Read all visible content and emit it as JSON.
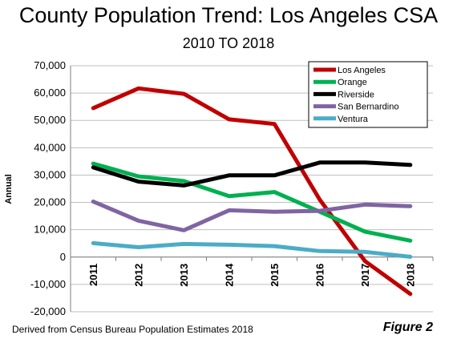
{
  "chart_data": {
    "type": "line",
    "title": "County Population Trend: Los Angeles CSA",
    "subtitle": "2010 TO 2018",
    "ylabel": "Annual",
    "xlabel": "",
    "ylim": [
      -20000,
      70000
    ],
    "y_ticks": [
      "70,000",
      "60,000",
      "50,000",
      "40,000",
      "30,000",
      "20,000",
      "10,000",
      "0",
      "-10,000",
      "-20,000"
    ],
    "x": [
      "2011",
      "2012",
      "2013",
      "2014",
      "2015",
      "2016",
      "2017",
      "2018"
    ],
    "series": [
      {
        "name": "Los Angeles",
        "color": "#c00000",
        "values": [
          54500,
          61700,
          59700,
          50400,
          48700,
          21000,
          -1500,
          -13500
        ]
      },
      {
        "name": "Orange",
        "color": "#00b050",
        "values": [
          34200,
          29500,
          27800,
          22300,
          23800,
          16600,
          9300,
          6000
        ]
      },
      {
        "name": "Riverside",
        "color": "#000000",
        "values": [
          32800,
          27600,
          26200,
          29900,
          29900,
          34600,
          34600,
          33700
        ]
      },
      {
        "name": "San Bernardino",
        "color": "#8064a2",
        "values": [
          20300,
          13300,
          9800,
          17100,
          16600,
          16900,
          19200,
          18600
        ]
      },
      {
        "name": "Ventura",
        "color": "#4bacc6",
        "values": [
          5100,
          3600,
          4800,
          4500,
          4000,
          2200,
          1900,
          100
        ]
      }
    ],
    "grid": true,
    "legend_position": "top-right"
  },
  "footer": {
    "source": "Derived from Census Bureau Population Estimates 2018",
    "figure": "Figure 2"
  }
}
